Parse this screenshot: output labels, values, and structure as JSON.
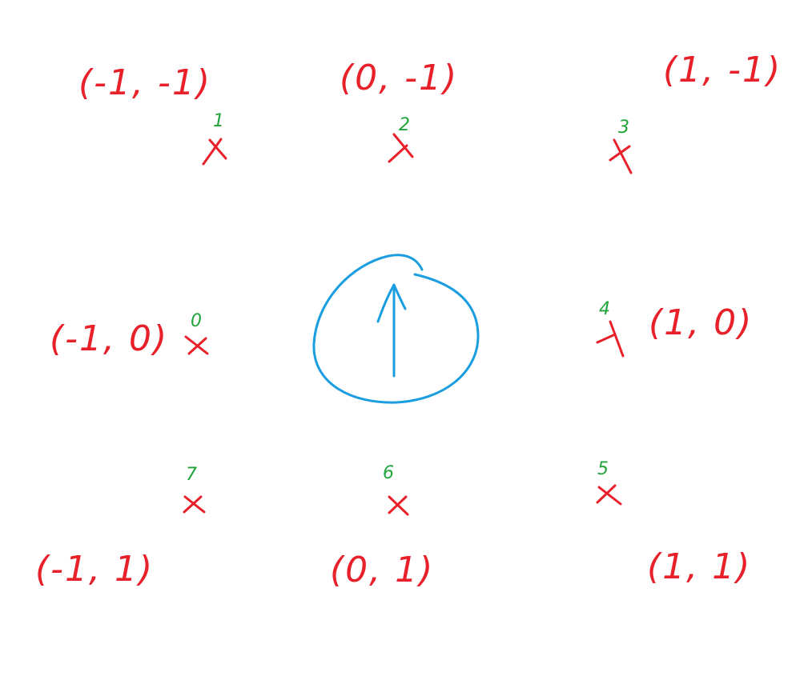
{
  "colors": {
    "cross": "#e8202a",
    "coordinate_text": "#e8202a",
    "index_text": "#22a33a",
    "agent_circle": "#1a9ee0",
    "agent_arrow": "#1a9ee0",
    "background": "#ffffff"
  },
  "center": {
    "name": "agent",
    "shape": "circle",
    "arrow_direction": "up"
  },
  "neighbors": [
    {
      "index": "0",
      "coordinate": "(-1, 0)",
      "row": "middle",
      "column": "left"
    },
    {
      "index": "1",
      "coordinate": "(-1, -1)",
      "row": "top",
      "column": "left"
    },
    {
      "index": "2",
      "coordinate": "(0, -1)",
      "row": "top",
      "column": "center"
    },
    {
      "index": "3",
      "coordinate": "(1, -1)",
      "row": "top",
      "column": "right"
    },
    {
      "index": "4",
      "coordinate": "(1, 0)",
      "row": "middle",
      "column": "right"
    },
    {
      "index": "5",
      "coordinate": "(1, 1)",
      "row": "bottom",
      "column": "right"
    },
    {
      "index": "6",
      "coordinate": "(0, 1)",
      "row": "bottom",
      "column": "center"
    },
    {
      "index": "7",
      "coordinate": "(-1, 1)",
      "row": "bottom",
      "column": "left"
    }
  ]
}
